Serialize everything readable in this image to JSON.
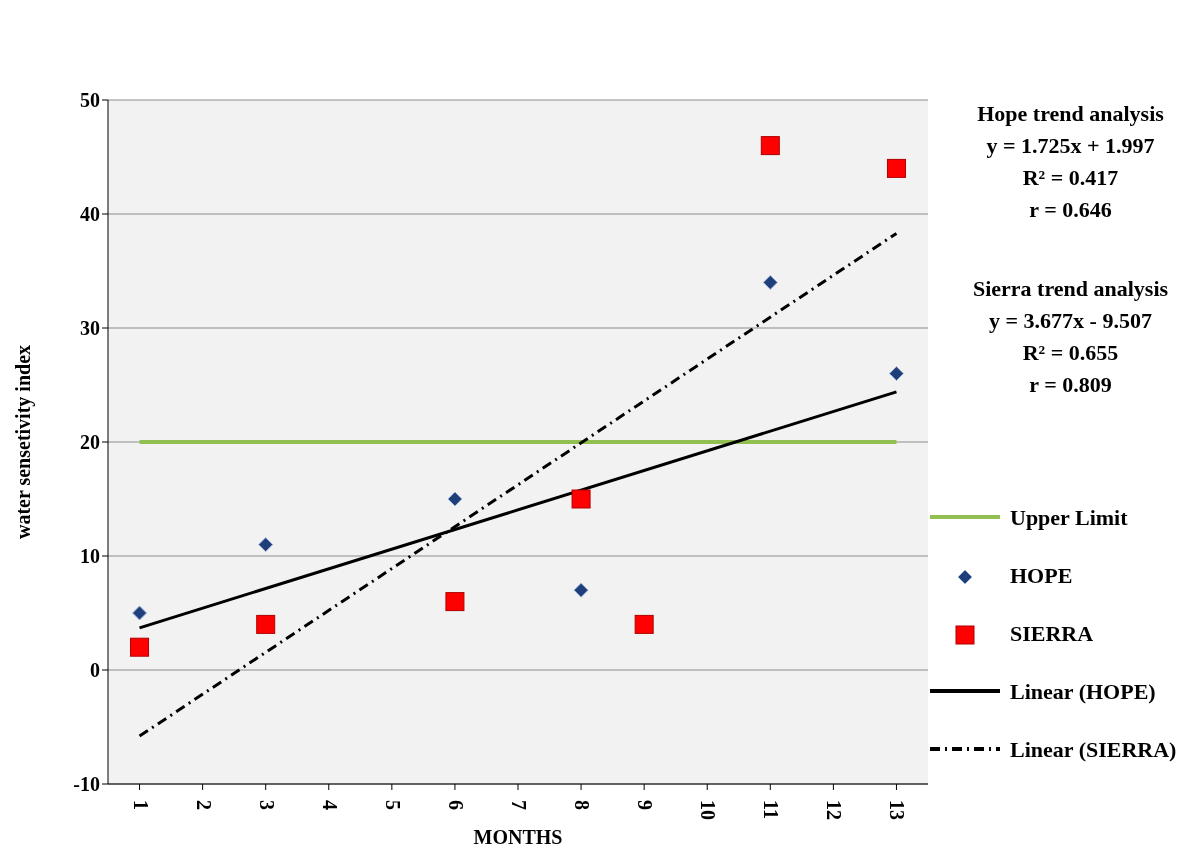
{
  "chart_data": {
    "type": "scatter",
    "xlabel": "MONTHS",
    "ylabel": "water sensetivity index",
    "categories": [
      "1",
      "2",
      "3",
      "4",
      "5",
      "6",
      "7",
      "8",
      "9",
      "10",
      "11",
      "12",
      "13"
    ],
    "series": [
      {
        "name": "Upper Limit",
        "type": "line",
        "color": "#92c050",
        "line_style": "solid",
        "marker": "none",
        "values": [
          20,
          20,
          20,
          20,
          20,
          20,
          20,
          20,
          20,
          20,
          20,
          20,
          20
        ]
      },
      {
        "name": "HOPE",
        "color": "#1f3f7a",
        "marker": "diamond",
        "values": [
          5,
          null,
          11,
          null,
          null,
          15,
          null,
          7,
          null,
          null,
          34,
          null,
          26
        ]
      },
      {
        "name": "SIERRA",
        "color": "#ff0000",
        "marker": "square",
        "values": [
          2,
          null,
          4,
          null,
          null,
          6,
          null,
          15,
          4,
          null,
          46,
          null,
          44
        ]
      },
      {
        "name": "Linear (HOPE)",
        "type": "line",
        "color": "#000000",
        "line_style": "solid",
        "marker": "none",
        "values": [
          3.7,
          null,
          null,
          null,
          null,
          null,
          null,
          null,
          null,
          null,
          null,
          null,
          24.4
        ]
      },
      {
        "name": "Linear (SIERRA)",
        "type": "line",
        "color": "#000000",
        "line_style": "dashed",
        "marker": "none",
        "values": [
          -5.8,
          null,
          null,
          null,
          null,
          null,
          null,
          null,
          null,
          null,
          null,
          null,
          38.3
        ]
      }
    ],
    "ylim": [
      -10,
      50
    ],
    "yticks": [
      -10,
      0,
      10,
      20,
      30,
      40,
      50
    ],
    "grid": "y",
    "legend": "right",
    "annotations": [
      "Hope trend analysis\ny = 1.725x + 1.997\nR² = 0.417\nr = 0.646",
      "Sierra  trend analysis\ny = 3.677x - 9.507\nR² = 0.655\nr = 0.809"
    ]
  }
}
